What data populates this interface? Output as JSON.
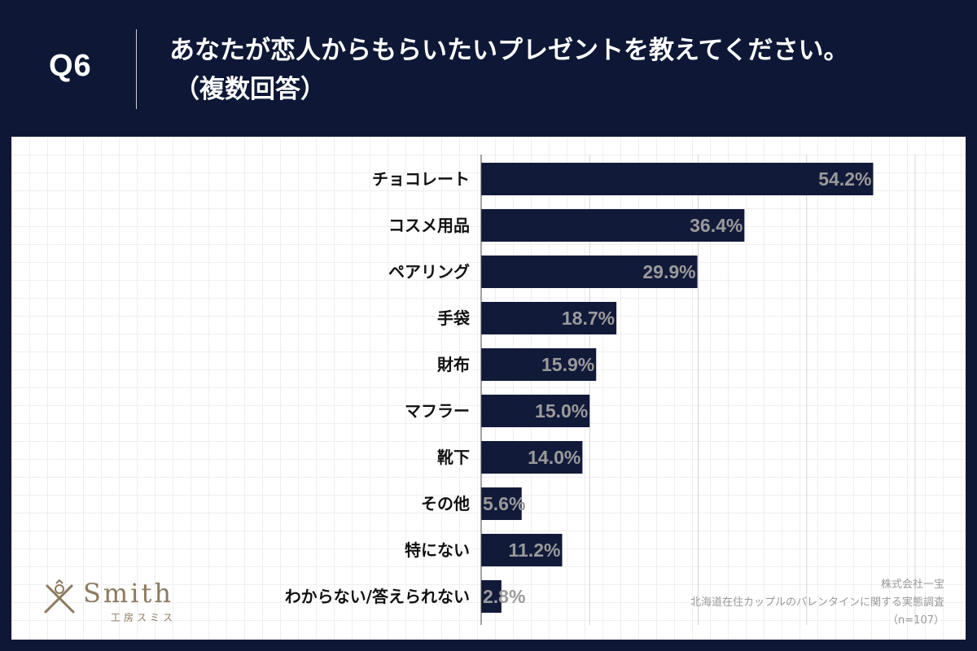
{
  "question": {
    "number": "Q6",
    "line1": "あなたが恋人からもらいたいプレゼントを教えてください。",
    "line2": "（複数回答）"
  },
  "chart_data": {
    "type": "bar",
    "orientation": "horizontal",
    "title": "あなたが恋人からもらいたいプレゼントを教えてください。（複数回答）",
    "categories": [
      "チョコレート",
      "コスメ用品",
      "ペアリング",
      "手袋",
      "財布",
      "マフラー",
      "靴下",
      "その他",
      "特にない",
      "わからない/答えられない"
    ],
    "values": [
      54.2,
      36.4,
      29.9,
      18.7,
      15.9,
      15.0,
      14.0,
      5.6,
      11.2,
      2.8
    ],
    "value_labels": [
      "54.2%",
      "36.4%",
      "29.9%",
      "18.7%",
      "15.9%",
      "15.0%",
      "14.0%",
      "5.6%",
      "11.2%",
      "2.8%"
    ],
    "xlim": [
      0,
      60
    ],
    "gridlines": [
      15,
      30,
      45,
      60
    ],
    "grid": true,
    "xlabel": "",
    "ylabel": ""
  },
  "logo": {
    "word": "Smith",
    "sub": "工房スミス"
  },
  "source": {
    "company": "株式会社一宝",
    "survey": "北海道在住カップルのバレンタインに関する実態調査",
    "sample": "（n=107）"
  },
  "colors": {
    "background": "#0e1836",
    "bar": "#121a3a",
    "value_text": "#9a9a9a",
    "grid": "#d4d4d4"
  }
}
